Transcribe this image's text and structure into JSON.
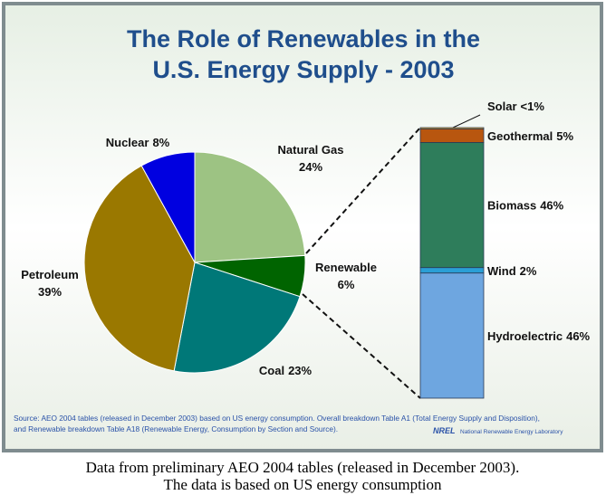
{
  "chart_data": [
    {
      "type": "pie",
      "title": [
        "The Role of Renewables in the",
        "U.S. Energy Supply - 2003"
      ],
      "categories": [
        "Natural Gas",
        "Renewable",
        "Coal",
        "Petroleum",
        "Nuclear"
      ],
      "values": [
        24,
        6,
        23,
        39,
        8
      ],
      "value_labels": [
        "24%",
        "6%",
        "23%",
        "39%",
        "8%"
      ],
      "colors": [
        "#9dc383",
        "#006400",
        "#007878",
        "#9a7800",
        "#0000e0"
      ]
    },
    {
      "type": "stacked-bar",
      "categories": [
        "Solar",
        "Geothermal",
        "Biomass",
        "Wind",
        "Hydroelectric"
      ],
      "values": [
        0.5,
        5,
        46,
        2,
        46
      ],
      "value_labels": [
        "<1%",
        "5%",
        "46%",
        "2%",
        "46%"
      ],
      "colors": [
        "#f0b030",
        "#b8560f",
        "#2e7d5b",
        "#2a9fd6",
        "#6ea6e0"
      ]
    }
  ],
  "source": [
    "Source: AEO 2004 tables (released in December 2003) based on US energy consumption. Overall breakdown Table A1 (Total Energy Supply and Disposition),",
    "and Renewable breakdown Table A18 (Renewable Energy, Consumption by Section and Source)."
  ],
  "logo": [
    "NREL",
    "National Renewable Energy Laboratory"
  ],
  "caption": [
    "Data from preliminary AEO 2004 tables (released in December 2003).",
    "The data is based on US energy consumption"
  ]
}
